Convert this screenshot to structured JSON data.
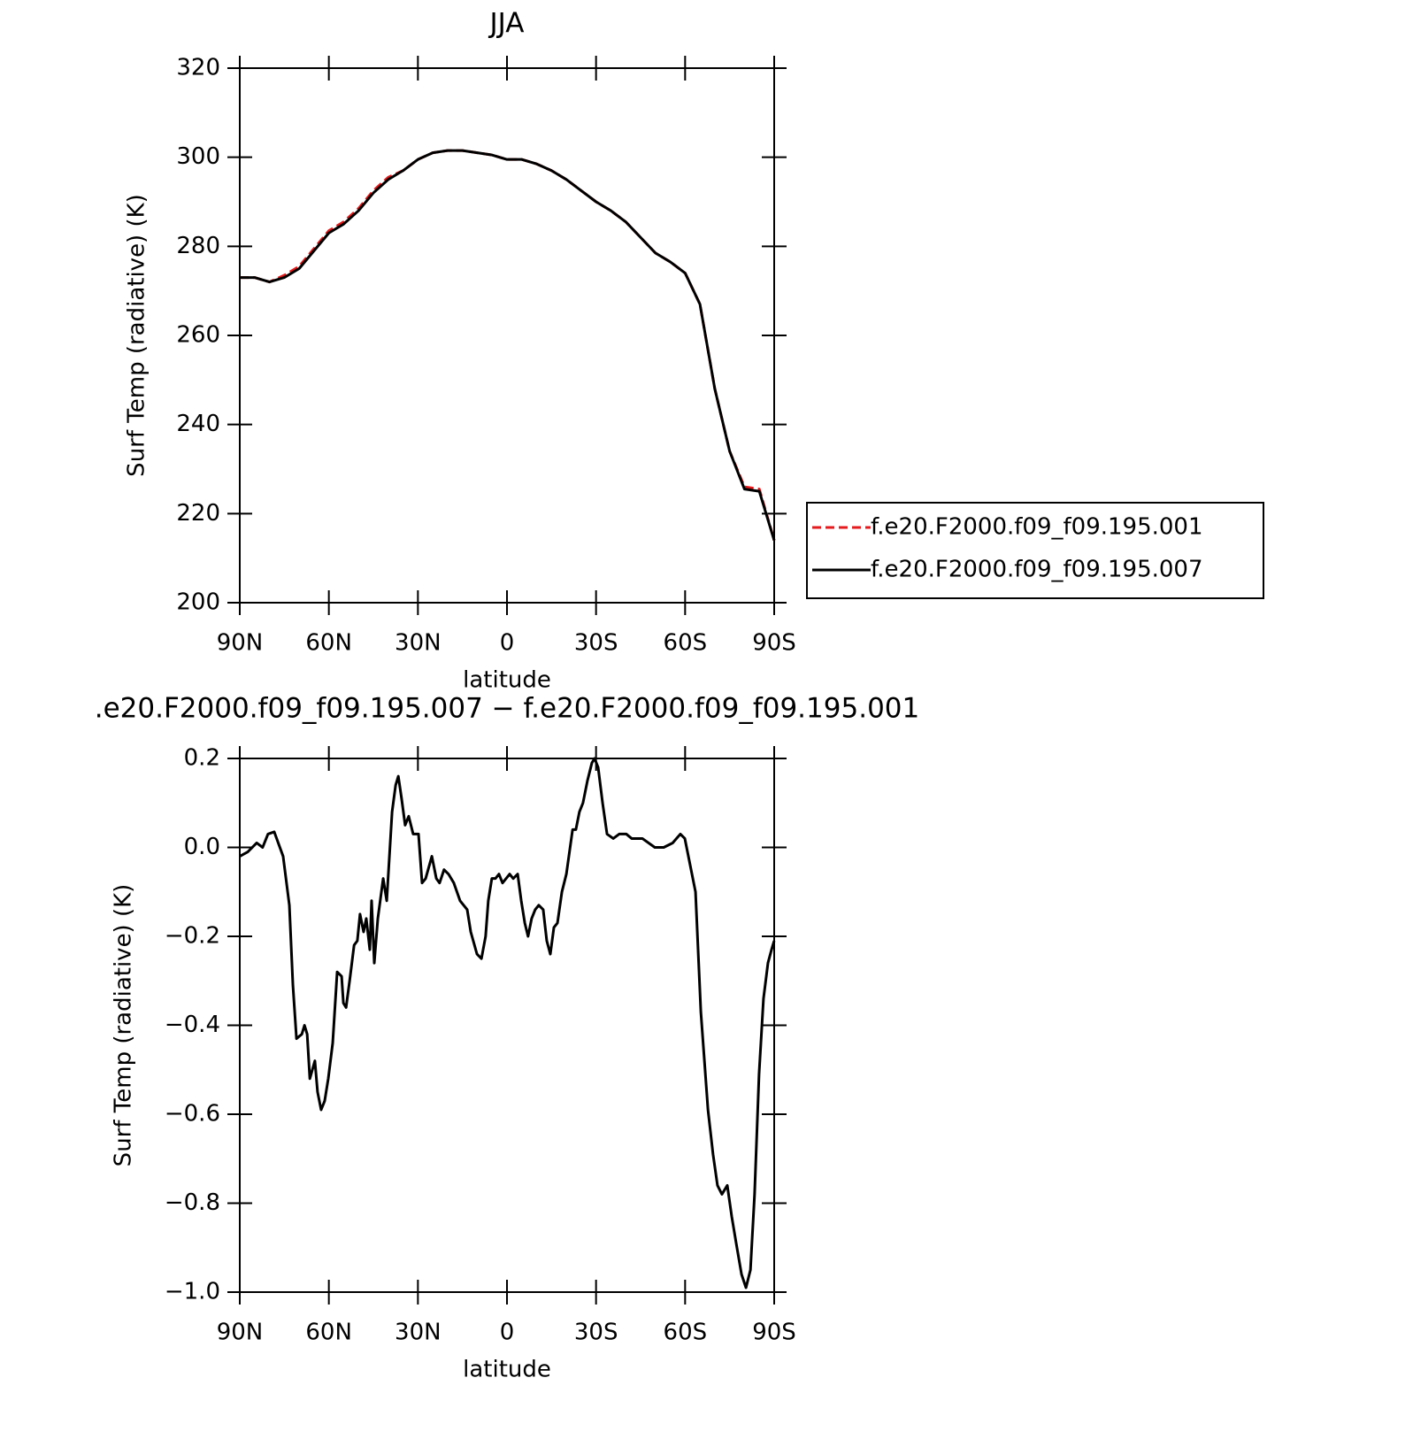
{
  "chart_data": [
    {
      "type": "line",
      "title": "JJA",
      "xlabel": "latitude",
      "ylabel": "Surf Temp (radiative) (K)",
      "x": [
        90,
        85,
        80,
        75,
        70,
        65,
        60,
        55,
        50,
        45,
        40,
        35,
        30,
        25,
        20,
        15,
        10,
        5,
        0,
        -5,
        -10,
        -15,
        -20,
        -25,
        -30,
        -35,
        -40,
        -45,
        -50,
        -55,
        -60,
        -65,
        -70,
        -75,
        -80,
        -85,
        -90
      ],
      "series": [
        {
          "name": "f.e20.F2000.f09_f09.195.001",
          "color": "#e41a1c",
          "linestyle": "dashed",
          "values": [
            273,
            273,
            272,
            273.5,
            275.5,
            279.5,
            283.5,
            285.5,
            288.5,
            292.5,
            295.5,
            297,
            299.5,
            301,
            301.5,
            301.5,
            301,
            300.5,
            299.5,
            299.5,
            298.5,
            297,
            295,
            292.5,
            290,
            288,
            285.5,
            282,
            278.5,
            276.5,
            274,
            267,
            248,
            234,
            226,
            225.5,
            214
          ]
        },
        {
          "name": "f.e20.F2000.f09_f09.195.007",
          "color": "#000000",
          "linestyle": "solid",
          "values": [
            273,
            273,
            272,
            273,
            275,
            279,
            283,
            285,
            288,
            292,
            295,
            297,
            299.5,
            301,
            301.5,
            301.5,
            301,
            300.5,
            299.5,
            299.5,
            298.5,
            297,
            295,
            292.5,
            290,
            288,
            285.5,
            282,
            278.5,
            276.5,
            274,
            267,
            248,
            234,
            225.5,
            225,
            214
          ]
        }
      ],
      "xlim": [
        90,
        -90
      ],
      "xticks": [
        {
          "value": 90,
          "label": "90N"
        },
        {
          "value": 60,
          "label": "60N"
        },
        {
          "value": 30,
          "label": "30N"
        },
        0,
        {
          "value": -30,
          "label": "30S"
        },
        {
          "value": -60,
          "label": "60S"
        },
        {
          "value": -90,
          "label": "90S"
        }
      ],
      "ylim": [
        200,
        320
      ],
      "yticks": [
        200,
        220,
        240,
        260,
        280,
        300,
        320
      ],
      "legend": "right"
    },
    {
      "type": "line",
      "title": ".e20.F2000.f09_f09.195.007 − f.e20.F2000.f09_f09.195.001",
      "xlabel": "latitude",
      "ylabel": "Surf Temp (radiative) (K)",
      "x": [
        90,
        87.3,
        84.3,
        82.3,
        80.5,
        78.4,
        75.4,
        73.3,
        72.1,
        70.9,
        69.1,
        68.2,
        67.3,
        66.4,
        64.7,
        63.8,
        62.6,
        61.4,
        60.2,
        58.7,
        57.2,
        55.7,
        55.1,
        54.2,
        53.0,
        51.5,
        50.4,
        49.5,
        48.3,
        47.4,
        46.2,
        45.6,
        44.7,
        43.5,
        41.7,
        40.5,
        38.7,
        37.5,
        36.6,
        35.5,
        34.3,
        33.1,
        31.6,
        29.8,
        28.6,
        27.4,
        25.3,
        23.8,
        22.7,
        21.2,
        19.7,
        17.9,
        15.8,
        14.6,
        13.4,
        12.2,
        10.1,
        8.6,
        7.2,
        6.3,
        5.1,
        3.9,
        2.7,
        1.5,
        0.3,
        -0.9,
        -2.1,
        -3.6,
        -4.8,
        -6.0,
        -7.1,
        -8.3,
        -9.5,
        -10.7,
        -12.2,
        -13.4,
        -14.6,
        -15.8,
        -17.0,
        -18.5,
        -20.0,
        -22.1,
        -23.2,
        -24.4,
        -25.6,
        -27.1,
        -28.6,
        -29.5,
        -30.7,
        -32.2,
        -33.7,
        -35.8,
        -37.8,
        -40.2,
        -42.0,
        -45.6,
        -49.8,
        -52.8,
        -55.8,
        -58.4,
        -59.9,
        -61.7,
        -63.5,
        -65.3,
        -67.7,
        -69.4,
        -70.9,
        -72.4,
        -74.2,
        -75.7,
        -77.2,
        -79.0,
        -80.5,
        -82.0,
        -83.4,
        -84.9,
        -86.4,
        -87.9,
        -89.1,
        -90
      ],
      "color": "#000000",
      "values": [
        -0.02,
        -0.01,
        0.01,
        0.0,
        0.03,
        0.035,
        -0.02,
        -0.13,
        -0.31,
        -0.43,
        -0.42,
        -0.4,
        -0.42,
        -0.52,
        -0.48,
        -0.55,
        -0.59,
        -0.57,
        -0.52,
        -0.44,
        -0.28,
        -0.29,
        -0.35,
        -0.36,
        -0.3,
        -0.22,
        -0.21,
        -0.15,
        -0.19,
        -0.16,
        -0.23,
        -0.12,
        -0.26,
        -0.16,
        -0.07,
        -0.12,
        0.08,
        0.14,
        0.16,
        0.11,
        0.05,
        0.07,
        0.03,
        0.03,
        -0.08,
        -0.07,
        -0.02,
        -0.07,
        -0.08,
        -0.05,
        -0.06,
        -0.08,
        -0.12,
        -0.13,
        -0.14,
        -0.19,
        -0.24,
        -0.25,
        -0.2,
        -0.12,
        -0.07,
        -0.07,
        -0.06,
        -0.08,
        -0.07,
        -0.06,
        -0.07,
        -0.06,
        -0.12,
        -0.17,
        -0.2,
        -0.16,
        -0.14,
        -0.13,
        -0.14,
        -0.21,
        -0.24,
        -0.18,
        -0.17,
        -0.1,
        -0.06,
        0.04,
        0.04,
        0.08,
        0.1,
        0.15,
        0.19,
        0.2,
        0.18,
        0.1,
        0.03,
        0.02,
        0.03,
        0.03,
        0.02,
        0.02,
        0.0,
        0.0,
        0.01,
        0.03,
        0.02,
        -0.04,
        -0.1,
        -0.37,
        -0.59,
        -0.69,
        -0.76,
        -0.78,
        -0.76,
        -0.83,
        -0.89,
        -0.96,
        -0.99,
        -0.95,
        -0.78,
        -0.51,
        -0.34,
        -0.26,
        -0.23,
        -0.21
      ],
      "xlim": [
        90,
        -90
      ],
      "xticks": [
        {
          "value": 90,
          "label": "90N"
        },
        {
          "value": 60,
          "label": "60N"
        },
        {
          "value": 30,
          "label": "30N"
        },
        0,
        {
          "value": -30,
          "label": "30S"
        },
        {
          "value": -60,
          "label": "60S"
        },
        {
          "value": -90,
          "label": "90S"
        }
      ],
      "ylim": [
        -1.0,
        0.2
      ],
      "yticks": [
        {
          "value": -1.0,
          "label": "−1.0"
        },
        {
          "value": -0.8,
          "label": "−0.8"
        },
        {
          "value": -0.6,
          "label": "−0.6"
        },
        {
          "value": -0.4,
          "label": "−0.4"
        },
        {
          "value": -0.2,
          "label": "−0.2"
        },
        {
          "value": 0.0,
          "label": "0.0"
        },
        0.2
      ]
    }
  ]
}
